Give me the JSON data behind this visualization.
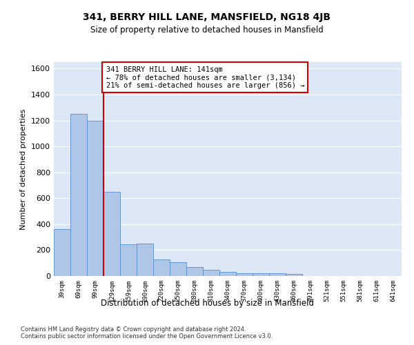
{
  "title": "341, BERRY HILL LANE, MANSFIELD, NG18 4JB",
  "subtitle": "Size of property relative to detached houses in Mansfield",
  "xlabel": "Distribution of detached houses by size in Mansfield",
  "ylabel": "Number of detached properties",
  "footer": "Contains HM Land Registry data © Crown copyright and database right 2024.\nContains public sector information licensed under the Open Government Licence v3.0.",
  "annotation_line1": "341 BERRY HILL LANE: 141sqm",
  "annotation_line2": "← 78% of detached houses are smaller (3,134)",
  "annotation_line3": "21% of semi-detached houses are larger (856) →",
  "bar_color": "#aec6e8",
  "bar_edge_color": "#5b8dc8",
  "vline_color": "#cc0000",
  "annotation_box_edge": "#cc0000",
  "background_color": "#ffffff",
  "plot_background": "#dce8f5",
  "grid_color": "#ffffff",
  "categories": [
    "39sqm",
    "69sqm",
    "99sqm",
    "129sqm",
    "159sqm",
    "190sqm",
    "220sqm",
    "250sqm",
    "280sqm",
    "310sqm",
    "340sqm",
    "370sqm",
    "400sqm",
    "430sqm",
    "460sqm",
    "491sqm",
    "521sqm",
    "551sqm",
    "581sqm",
    "611sqm",
    "641sqm"
  ],
  "values": [
    360,
    1250,
    1200,
    650,
    245,
    250,
    130,
    105,
    70,
    50,
    30,
    20,
    20,
    20,
    15,
    0,
    0,
    0,
    0,
    0,
    0
  ],
  "ylim": [
    0,
    1650
  ],
  "yticks": [
    0,
    200,
    400,
    600,
    800,
    1000,
    1200,
    1400,
    1600
  ],
  "vline_bar_index": 3,
  "figsize": [
    6.0,
    5.0
  ],
  "dpi": 100
}
